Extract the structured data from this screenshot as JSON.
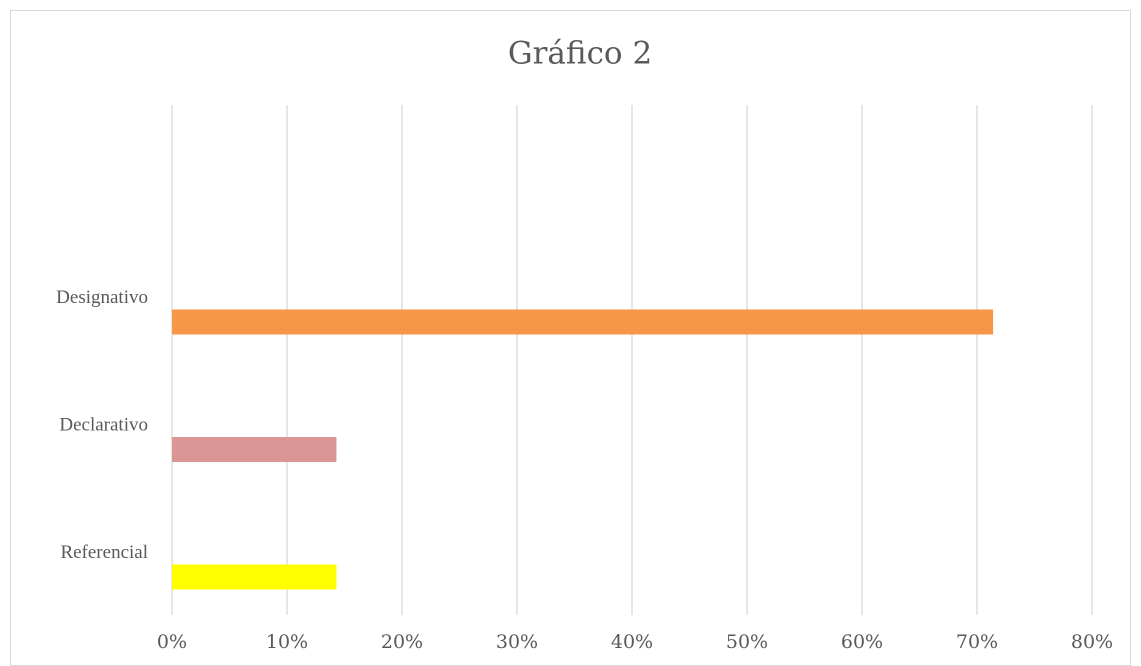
{
  "chart_data": {
    "type": "barh",
    "title": "Gráfico 2",
    "categories": [
      "Designativo",
      "Declarativo",
      "Referencial"
    ],
    "values": [
      71.4,
      14.3,
      14.3
    ],
    "colors": [
      "#f79646",
      "#d99694",
      "#ffff00"
    ],
    "xlim": [
      0,
      80
    ],
    "xticks": [
      {
        "value": 0,
        "label": "0%"
      },
      {
        "value": 10,
        "label": "10%"
      },
      {
        "value": 20,
        "label": "20%"
      },
      {
        "value": 30,
        "label": "30%"
      },
      {
        "value": 40,
        "label": "40%"
      },
      {
        "value": 50,
        "label": "50%"
      },
      {
        "value": 60,
        "label": "60%"
      },
      {
        "value": 70,
        "label": "70%"
      },
      {
        "value": 80,
        "label": "80%"
      }
    ],
    "grid": true
  }
}
